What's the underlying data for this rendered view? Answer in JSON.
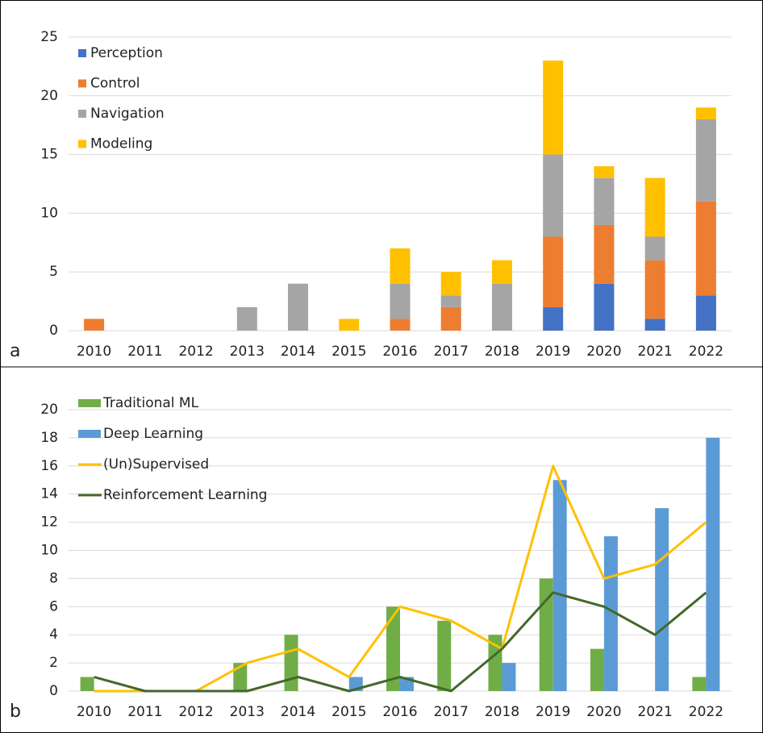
{
  "chart_data": [
    {
      "type": "bar",
      "stacked": true,
      "label": "a",
      "categories": [
        "2010",
        "2011",
        "2012",
        "2013",
        "2014",
        "2015",
        "2016",
        "2017",
        "2018",
        "2019",
        "2020",
        "2021",
        "2022"
      ],
      "series": [
        {
          "name": "Perception",
          "color": "#4472c4",
          "values": [
            0,
            0,
            0,
            0,
            0,
            0,
            0,
            0,
            0,
            2,
            4,
            1,
            3
          ]
        },
        {
          "name": "Control",
          "color": "#ed7d31",
          "values": [
            1,
            0,
            0,
            0,
            0,
            0,
            1,
            2,
            0,
            6,
            5,
            5,
            8
          ]
        },
        {
          "name": "Navigation",
          "color": "#a5a5a5",
          "values": [
            0,
            0,
            0,
            2,
            4,
            0,
            3,
            1,
            4,
            7,
            4,
            2,
            7
          ]
        },
        {
          "name": "Modeling",
          "color": "#ffc000",
          "values": [
            0,
            0,
            0,
            0,
            0,
            1,
            3,
            2,
            2,
            8,
            1,
            5,
            1
          ]
        }
      ],
      "ylim": [
        0,
        25
      ],
      "yticks": [
        0,
        5,
        10,
        15,
        20,
        25
      ],
      "grid": true
    },
    {
      "type": "combo",
      "label": "b",
      "categories": [
        "2010",
        "2011",
        "2012",
        "2013",
        "2014",
        "2015",
        "2016",
        "2017",
        "2018",
        "2019",
        "2020",
        "2021",
        "2022"
      ],
      "series": [
        {
          "name": "Traditional ML",
          "kind": "bar",
          "color": "#70ad47",
          "values": [
            1,
            0,
            0,
            2,
            4,
            0,
            6,
            5,
            4,
            8,
            3,
            0,
            1
          ]
        },
        {
          "name": "Deep Learning",
          "kind": "bar",
          "color": "#5b9bd5",
          "values": [
            0,
            0,
            0,
            0,
            0,
            1,
            1,
            0,
            2,
            15,
            11,
            13,
            18
          ]
        },
        {
          "name": "(Un)Supervised",
          "kind": "line",
          "color": "#ffc000",
          "values": [
            0,
            0,
            0,
            2,
            3,
            1,
            6,
            5,
            3,
            16,
            8,
            9,
            12
          ]
        },
        {
          "name": "Reinforcement Learning",
          "kind": "line",
          "color": "#43682b",
          "values": [
            1,
            0,
            0,
            0,
            1,
            0,
            1,
            0,
            3,
            7,
            6,
            4,
            7
          ]
        }
      ],
      "ylim": [
        0,
        20
      ],
      "yticks": [
        0,
        2,
        4,
        6,
        8,
        10,
        12,
        14,
        16,
        18,
        20
      ],
      "grid": true
    }
  ]
}
